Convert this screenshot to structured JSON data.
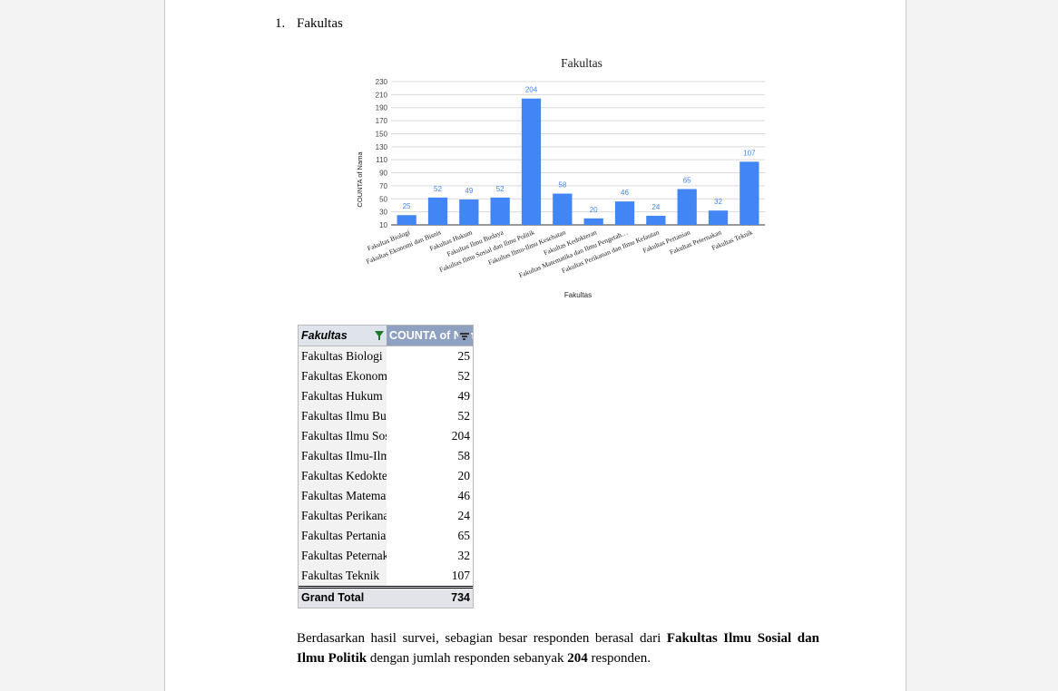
{
  "document": {
    "list_number": "1.",
    "heading": "Fakultas",
    "paragraph": {
      "part1": "Berdasarkan hasil survei, sebagian besar responden berasal dari ",
      "bold1": "Fakultas Ilmu Sosial dan Ilmu Politik",
      "part2": " dengan jumlah responden sebanyak ",
      "bold2": "204",
      "part3": " responden."
    }
  },
  "chart_data": {
    "type": "bar",
    "title": "Fakultas",
    "xlabel": "Fakultas",
    "ylabel": "COUNTA of Nama",
    "ylim": [
      10,
      230
    ],
    "yticks": [
      10,
      30,
      50,
      70,
      90,
      110,
      130,
      150,
      170,
      190,
      210,
      230
    ],
    "grid": true,
    "bar_color": "#4285f4",
    "label_color": "#4285f4",
    "categories": [
      "Fakultas Biologi",
      "Fakultas Ekonomi dan Bisnis",
      "Fakultas Hukum",
      "Fakultas Ilmu Budaya",
      "Fakultas Ilmu Sosial dan Ilmu Politik",
      "Fakultas Ilmu-Ilmu Kesehatan",
      "Fakultas Kedokteran",
      "Fakultas Matematika dan Ilmu Pengetah…",
      "Fakultas Perikanan dan Ilmu Kelautan",
      "Fakultas Pertanian",
      "Fakultas Peternakan",
      "Fakultas Teknik"
    ],
    "values": [
      25,
      52,
      49,
      52,
      204,
      58,
      20,
      46,
      24,
      65,
      32,
      107
    ]
  },
  "pivot": {
    "header_left": "Fakultas",
    "header_right": "COUNTA of Nama",
    "rows": [
      {
        "name": "Fakultas Biologi",
        "value": "25"
      },
      {
        "name": "Fakultas Ekonomi dan Bisnis",
        "value": "52"
      },
      {
        "name": "Fakultas Hukum",
        "value": "49"
      },
      {
        "name": "Fakultas Ilmu Budaya",
        "value": "52"
      },
      {
        "name": "Fakultas Ilmu Sosial dan Ilmu Politik",
        "value": "204"
      },
      {
        "name": "Fakultas Ilmu-Ilmu Kesehatan",
        "value": "58"
      },
      {
        "name": "Fakultas Kedokteran",
        "value": "20"
      },
      {
        "name": "Fakultas Matematika dan Ilmu Pengetahuan Alam",
        "value": "46"
      },
      {
        "name": "Fakultas Perikanan dan Ilmu Kelautan",
        "value": "24"
      },
      {
        "name": "Fakultas Pertanian",
        "value": "65"
      },
      {
        "name": "Fakultas Peternakan",
        "value": "32"
      },
      {
        "name": "Fakultas Teknik",
        "value": "107"
      }
    ],
    "total_label": "Grand Total",
    "total_value": "734",
    "icons": {
      "filter": "filter-icon",
      "sort": "sort-icon"
    },
    "colors": {
      "header_left_bg": "#dfe3ec",
      "header_right_bg": "#8fa1c0",
      "filter_icon": "#1d7a2c"
    }
  }
}
